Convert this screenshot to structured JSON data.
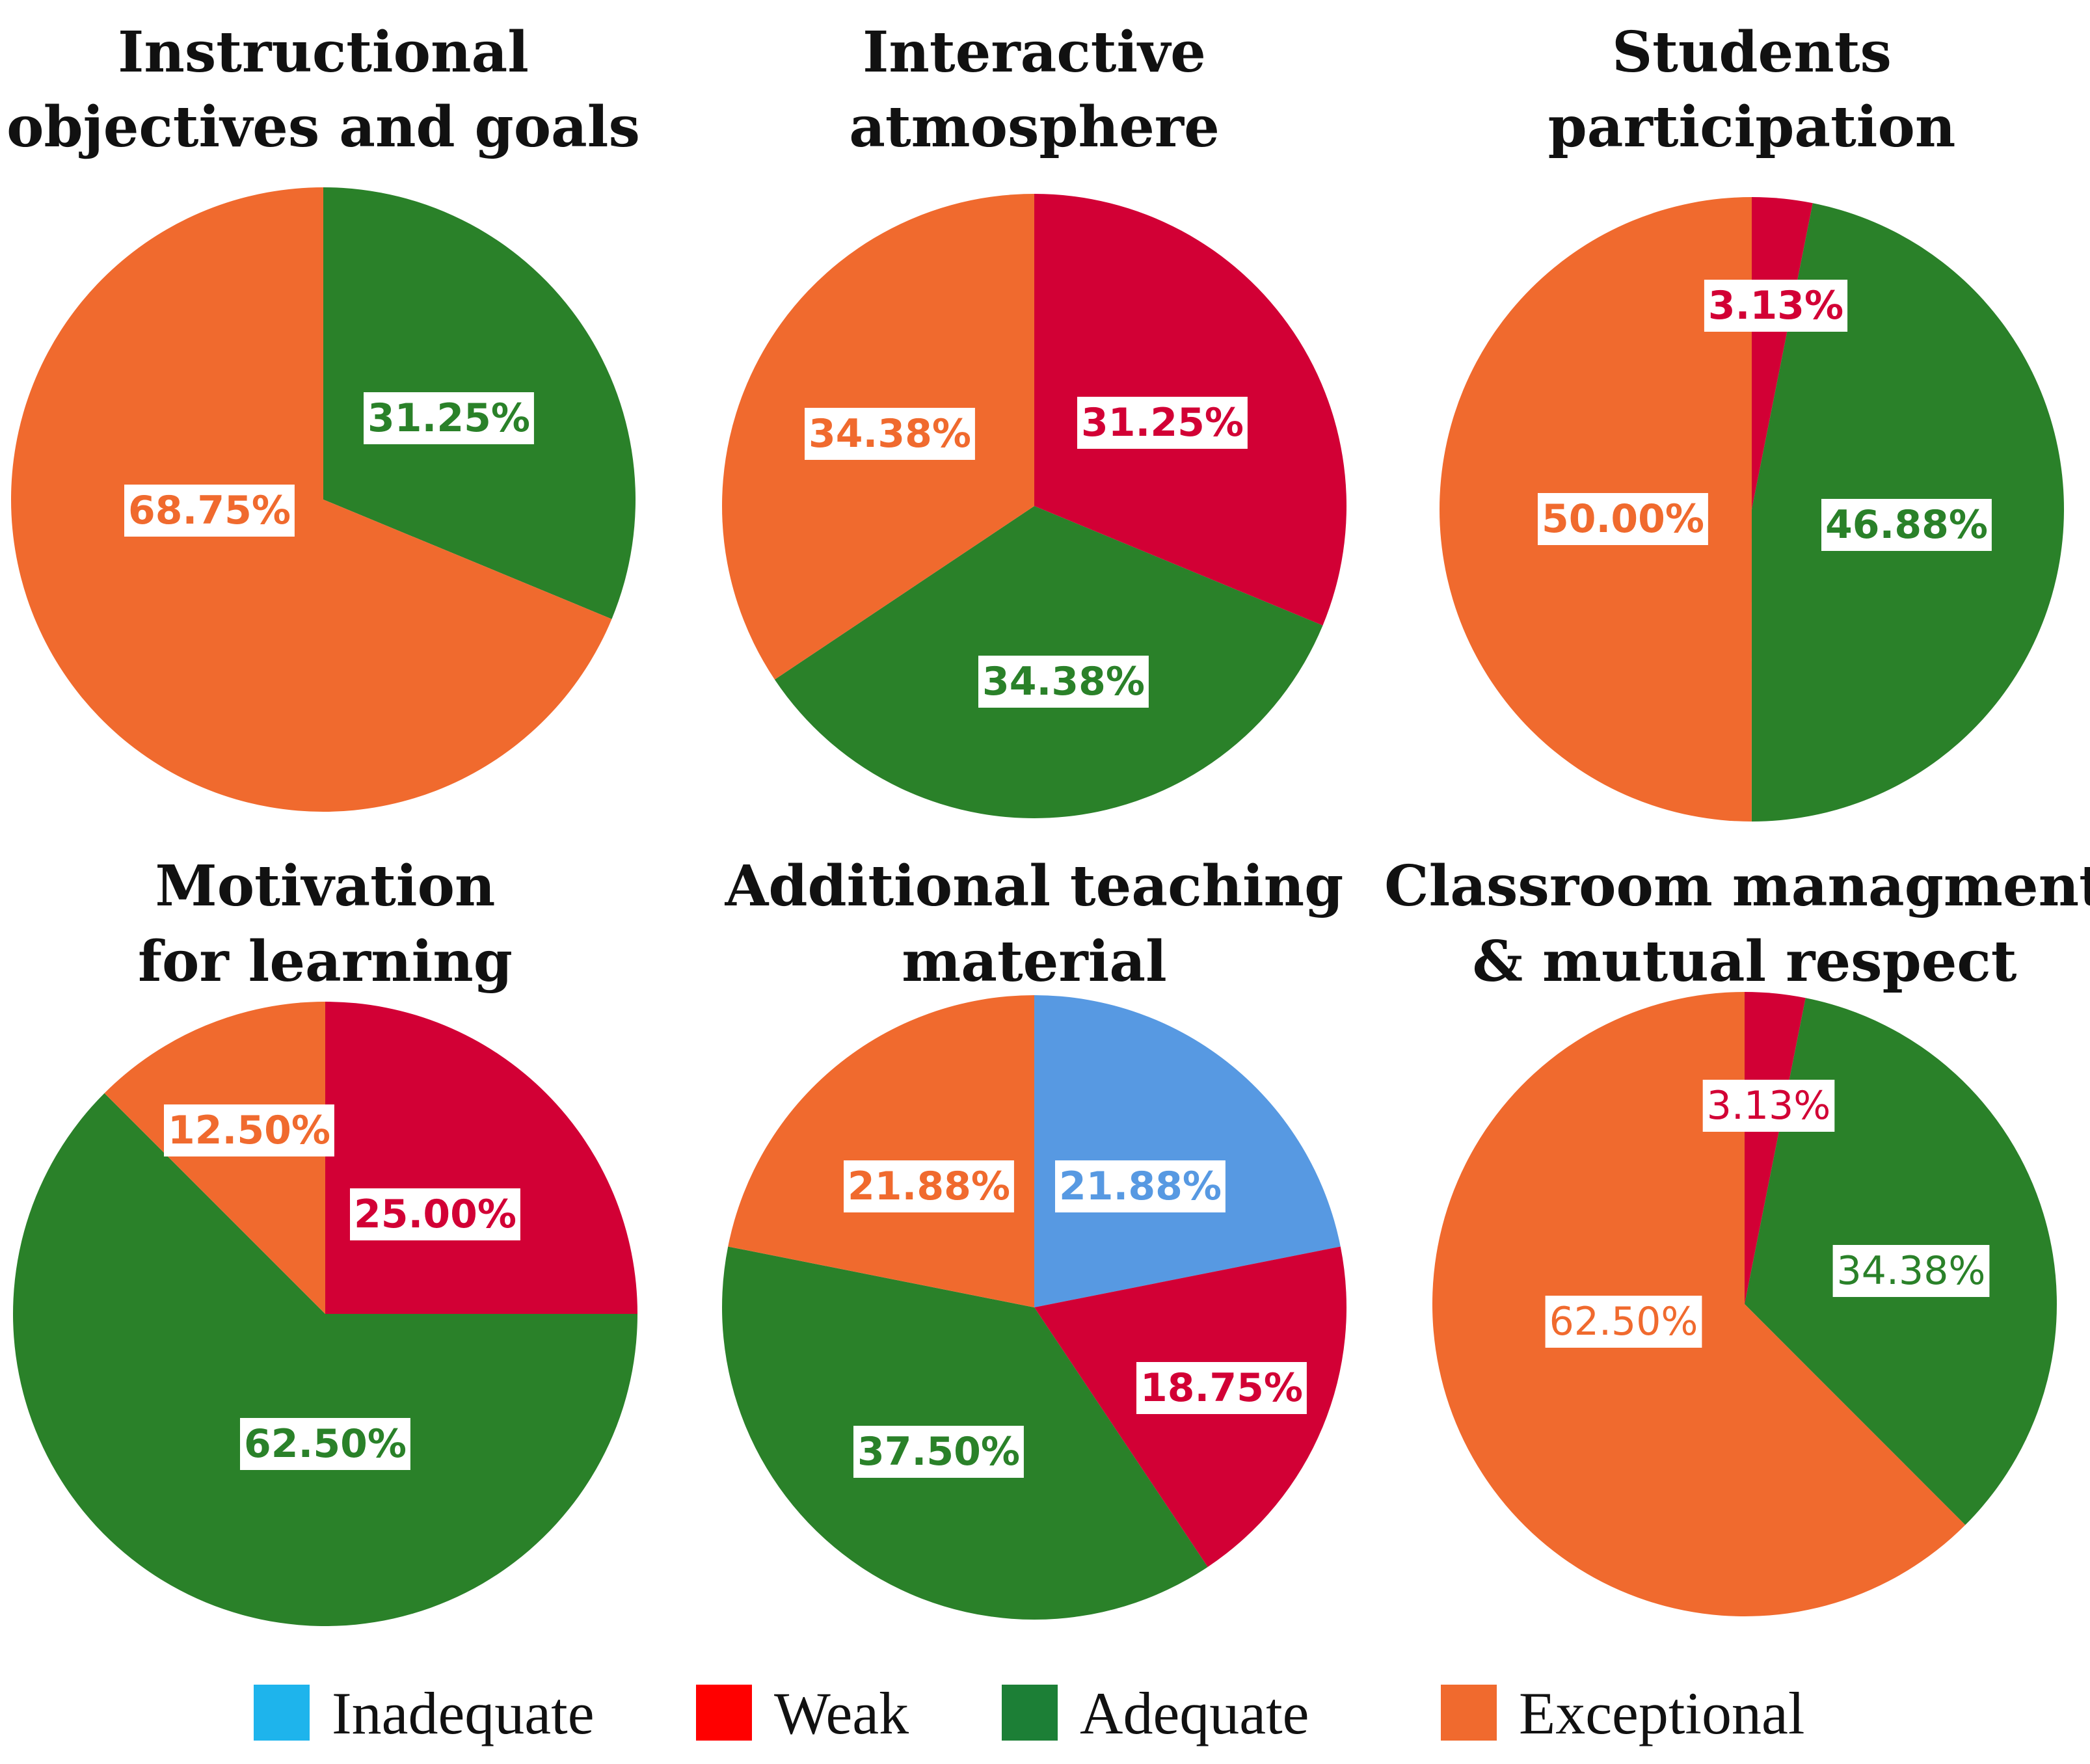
{
  "legend": {
    "items": [
      {
        "key": "inadequate",
        "label": "Inadequate",
        "color": "#1EB4EC"
      },
      {
        "key": "weak",
        "label": "Weak",
        "color": "#FF0000"
      },
      {
        "key": "adequate",
        "label": "Adequate",
        "color": "#1C7F36"
      },
      {
        "key": "exceptional",
        "label": "Exceptional",
        "color": "#F06A2E"
      }
    ]
  },
  "chart_data": [
    {
      "type": "pie",
      "title_lines": [
        "Instructional",
        "objectives and goals"
      ],
      "slices": [
        {
          "category": "Adequate",
          "value": 31.25,
          "label": "31.25%",
          "fill": "#2A8129",
          "text_color": "#2A8129"
        },
        {
          "category": "Exceptional",
          "value": 68.75,
          "label": "68.75%",
          "fill": "#F06A2E",
          "text_color": "#F06A2E"
        }
      ]
    },
    {
      "type": "pie",
      "title_lines": [
        "Interactive",
        "atmosphere"
      ],
      "slices": [
        {
          "category": "Weak",
          "value": 31.25,
          "label": "31.25%",
          "fill": "#D20035",
          "text_color": "#D20035"
        },
        {
          "category": "Adequate",
          "value": 34.38,
          "label": "34.38%",
          "fill": "#2A8129",
          "text_color": "#2A8129"
        },
        {
          "category": "Exceptional",
          "value": 34.38,
          "label": "34.38%",
          "fill": "#F06A2E",
          "text_color": "#F06A2E"
        }
      ]
    },
    {
      "type": "pie",
      "title_lines": [
        "Students",
        "participation"
      ],
      "slices": [
        {
          "category": "Weak",
          "value": 3.13,
          "label": "3.13%",
          "fill": "#D20035",
          "text_color": "#D20035"
        },
        {
          "category": "Adequate",
          "value": 46.88,
          "label": "46.88%",
          "fill": "#2A8129",
          "text_color": "#2A8129"
        },
        {
          "category": "Exceptional",
          "value": 50.0,
          "label": "50.00%",
          "fill": "#F06A2E",
          "text_color": "#F06A2E"
        }
      ]
    },
    {
      "type": "pie",
      "title_lines": [
        "Motivation",
        "for learning"
      ],
      "slices": [
        {
          "category": "Weak",
          "value": 25.0,
          "label": "25.00%",
          "fill": "#D20035",
          "text_color": "#D20035"
        },
        {
          "category": "Adequate",
          "value": 62.5,
          "label": "62.50%",
          "fill": "#2A8129",
          "text_color": "#2A8129"
        },
        {
          "category": "Exceptional",
          "value": 12.5,
          "label": "12.50%",
          "fill": "#F06A2E",
          "text_color": "#F06A2E"
        }
      ]
    },
    {
      "type": "pie",
      "title_lines": [
        "Additional teaching",
        "material"
      ],
      "slices": [
        {
          "category": "Inadequate",
          "value": 21.88,
          "label": "21.88%",
          "fill": "#5799E2",
          "text_color": "#5799E2"
        },
        {
          "category": "Weak",
          "value": 18.75,
          "label": "18.75%",
          "fill": "#D20035",
          "text_color": "#D20035"
        },
        {
          "category": "Adequate",
          "value": 37.5,
          "label": "37.50%",
          "fill": "#2A8129",
          "text_color": "#2A8129"
        },
        {
          "category": "Exceptional",
          "value": 21.88,
          "label": "21.88%",
          "fill": "#F06A2E",
          "text_color": "#F06A2E"
        }
      ]
    },
    {
      "type": "pie",
      "title_lines": [
        "Classroom managment",
        "& mutual respect"
      ],
      "label_style": "light",
      "slices": [
        {
          "category": "Weak",
          "value": 3.13,
          "label": "3.13%",
          "fill": "#D20035",
          "text_color": "#D20035"
        },
        {
          "category": "Adequate",
          "value": 34.38,
          "label": "34.38%",
          "fill": "#2A8129",
          "text_color": "#2A8129"
        },
        {
          "category": "Exceptional",
          "value": 62.5,
          "label": "62.50%",
          "fill": "#F06A2E",
          "text_color": "#F06A2E"
        }
      ]
    }
  ]
}
